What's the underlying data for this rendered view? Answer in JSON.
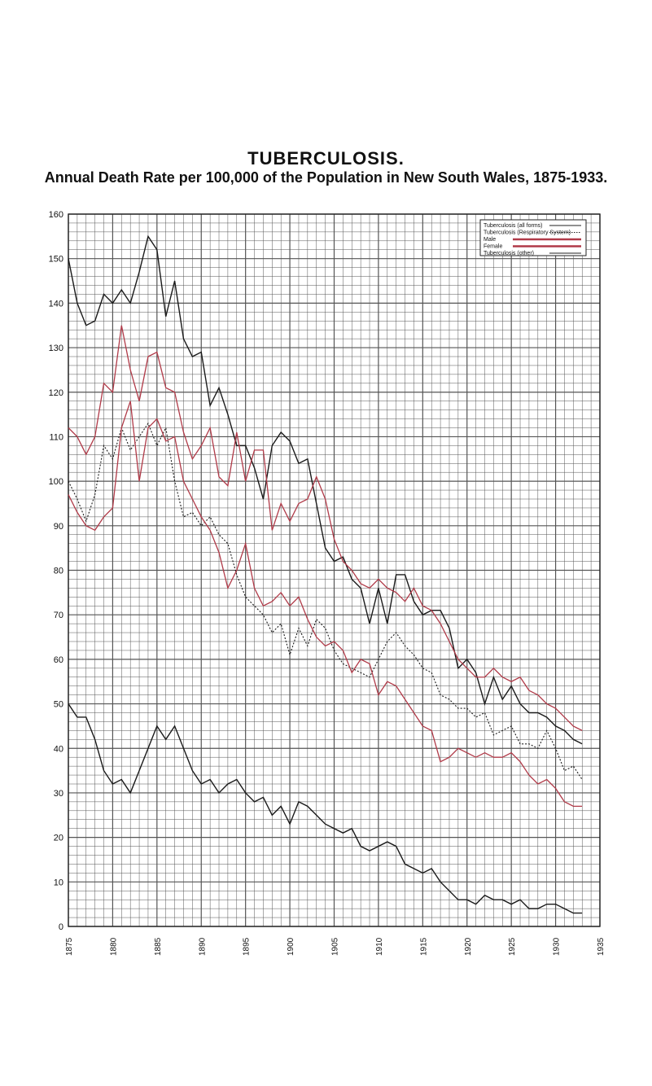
{
  "chart_data": {
    "type": "line",
    "title": "TUBERCULOSIS.",
    "subtitle": "Annual Death Rate per 100,000 of the Population in New South Wales, 1875-1933.",
    "xlabel": "",
    "ylabel": "",
    "xlim": [
      1875,
      1935
    ],
    "ylim": [
      0,
      160
    ],
    "grid": true,
    "legend_position": "top-right",
    "y_ticks": [
      "160",
      "150",
      "140",
      "130",
      "120",
      "110",
      "100",
      "90",
      "80",
      "70",
      "60",
      "50",
      "40",
      "30",
      "20",
      "10",
      "0"
    ],
    "x_ticks": [
      "1875",
      "1880",
      "1885",
      "1890",
      "1895",
      "1900",
      "1905",
      "1910",
      "1915",
      "1920",
      "1925",
      "1930",
      "1935"
    ],
    "colors": {
      "male": "#b03a48",
      "ink": "#1a1a1a",
      "grid": "#555555"
    },
    "legend": [
      {
        "name": "Tuberculosis (all forms)",
        "style": "solid"
      },
      {
        "name": "Tuberculosis (Respiratory System)",
        "style": "dotted"
      },
      {
        "name": "Male",
        "style": "solid-red"
      },
      {
        "name": "Female",
        "style": "solid-red"
      },
      {
        "name": "Tuberculosis (other)",
        "style": "solid"
      }
    ],
    "x": [
      1875,
      1876,
      1877,
      1878,
      1879,
      1880,
      1881,
      1882,
      1883,
      1884,
      1885,
      1886,
      1887,
      1888,
      1889,
      1890,
      1891,
      1892,
      1893,
      1894,
      1895,
      1896,
      1897,
      1898,
      1899,
      1900,
      1901,
      1902,
      1903,
      1904,
      1905,
      1906,
      1907,
      1908,
      1909,
      1910,
      1911,
      1912,
      1913,
      1914,
      1915,
      1916,
      1917,
      1918,
      1919,
      1920,
      1921,
      1922,
      1923,
      1924,
      1925,
      1926,
      1927,
      1928,
      1929,
      1930,
      1931,
      1932,
      1933
    ],
    "series": [
      {
        "name": "Tuberculosis (all forms)",
        "style": "solid",
        "values": [
          150,
          140,
          135,
          136,
          142,
          140,
          143,
          140,
          147,
          155,
          152,
          137,
          145,
          132,
          128,
          129,
          117,
          121,
          115,
          108,
          108,
          103,
          96,
          108,
          111,
          109,
          104,
          105,
          95,
          85,
          82,
          83,
          78,
          76,
          68,
          76,
          68,
          79,
          79,
          73,
          70,
          71,
          71,
          67,
          58,
          60,
          57,
          50,
          56,
          51,
          54,
          50,
          48,
          48,
          47,
          45,
          44,
          42,
          41
        ]
      },
      {
        "name": "Tuberculosis (Respiratory System)",
        "style": "dotted",
        "values": [
          100,
          96,
          91,
          97,
          108,
          105,
          112,
          107,
          110,
          113,
          108,
          112,
          100,
          92,
          93,
          90,
          92,
          88,
          86,
          79,
          74,
          72,
          70,
          66,
          68,
          61,
          67,
          63,
          69,
          67,
          62,
          59,
          58,
          57,
          56,
          60,
          64,
          66,
          63,
          61,
          58,
          57,
          52,
          51,
          49,
          49,
          47,
          48,
          43,
          44,
          45,
          41,
          41,
          40,
          44,
          40,
          35,
          36,
          33
        ]
      },
      {
        "name": "Male",
        "style": "solid-red",
        "values": [
          112,
          110,
          106,
          110,
          122,
          120,
          135,
          125,
          118,
          128,
          129,
          121,
          120,
          111,
          105,
          108,
          112,
          101,
          99,
          111,
          100,
          107,
          107,
          89,
          95,
          91,
          95,
          96,
          101,
          96,
          87,
          82,
          80,
          77,
          76,
          78,
          76,
          75,
          73,
          76,
          72,
          71,
          68,
          64,
          60,
          58,
          56,
          56,
          58,
          56,
          55,
          56,
          53,
          52,
          50,
          49,
          47,
          45,
          44
        ]
      },
      {
        "name": "Female",
        "style": "solid-red",
        "values": [
          97,
          93,
          90,
          89,
          92,
          94,
          112,
          118,
          100,
          112,
          114,
          109,
          110,
          100,
          96,
          92,
          89,
          84,
          76,
          80,
          86,
          76,
          72,
          73,
          75,
          72,
          74,
          69,
          65,
          63,
          64,
          62,
          57,
          60,
          59,
          52,
          55,
          54,
          51,
          48,
          45,
          44,
          37,
          38,
          40,
          39,
          38,
          39,
          38,
          38,
          39,
          37,
          34,
          32,
          33,
          31,
          28,
          27,
          27
        ]
      },
      {
        "name": "Tuberculosis (other)",
        "style": "solid",
        "values": [
          50,
          47,
          47,
          42,
          35,
          32,
          33,
          30,
          35,
          40,
          45,
          42,
          45,
          40,
          35,
          32,
          33,
          30,
          32,
          33,
          30,
          28,
          29,
          25,
          27,
          23,
          28,
          27,
          25,
          23,
          22,
          21,
          22,
          18,
          17,
          18,
          19,
          18,
          14,
          13,
          12,
          13,
          10,
          8,
          6,
          6,
          5,
          7,
          6,
          6,
          5,
          6,
          4,
          4,
          5,
          5,
          4,
          3,
          3
        ]
      }
    ]
  }
}
